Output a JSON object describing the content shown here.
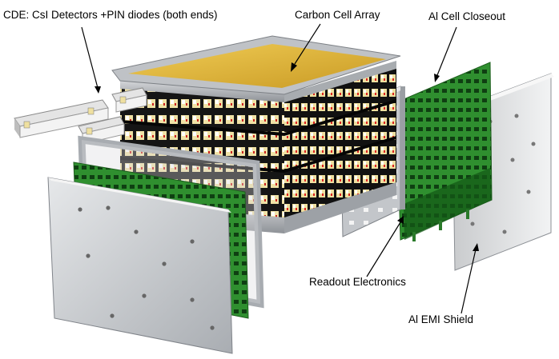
{
  "labels": {
    "cde": "CDE: CsI Detectors +PIN diodes (both ends)",
    "carbon_cell_array": "Carbon Cell Array",
    "al_cell_closeout": "Al Cell Closeout",
    "readout_electronics": "Readout Electronics",
    "al_emi_shield": "Al EMI Shield"
  },
  "colors": {
    "carbon_top": "#e2b73a",
    "frame": "#b9bcc0",
    "crystal_face": "#efe2a8",
    "cell_body": "#141414",
    "pcb_green": "#2e8b2e",
    "emi_shield": "#d6d8da",
    "pin_diode_red": "#cc2222"
  },
  "legend": {
    "ascii_art_alt": "Exploded view of a calorimeter module with detectors, carbon cell array, closeouts, electronics boards and shields"
  }
}
